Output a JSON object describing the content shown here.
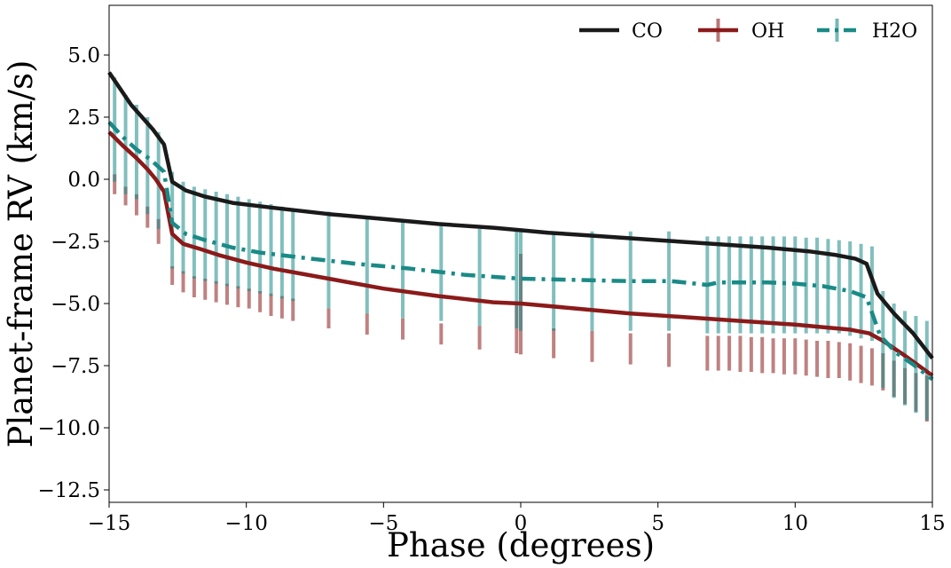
{
  "chart_data": {
    "type": "line",
    "title": "",
    "xlabel": "Phase (degrees)",
    "ylabel": "Planet-frame RV (km/s)",
    "xlim": [
      -15,
      15
    ],
    "ylim": [
      -13,
      7
    ],
    "xticks": [
      -15,
      -10,
      -5,
      0,
      5,
      10,
      15
    ],
    "xtick_labels": [
      "−15",
      "−10",
      "−5",
      "0",
      "5",
      "10",
      "15"
    ],
    "yticks": [
      5.0,
      2.5,
      0.0,
      -2.5,
      -5.0,
      -7.5,
      -10.0,
      -12.5
    ],
    "ytick_labels": [
      "5.0",
      "2.5",
      "0.0",
      "−2.5",
      "−5.0",
      "−7.5",
      "−10.0",
      "−12.5"
    ],
    "grid": false,
    "legend_position": "top-right",
    "series": [
      {
        "name": "CO",
        "color": "#1a1a1a",
        "style": "solid",
        "x": [
          -15.0,
          -14.2,
          -13.4,
          -13.0,
          -12.7,
          -12.2,
          -11.5,
          -10.5,
          -9.0,
          -7.0,
          -5.0,
          -3.0,
          -1.0,
          0.0,
          1.0,
          3.0,
          5.0,
          7.0,
          9.0,
          10.5,
          11.5,
          12.2,
          12.6,
          13.0,
          13.6,
          14.3,
          15.0
        ],
        "y": [
          4.3,
          3.0,
          2.0,
          1.4,
          -0.1,
          -0.45,
          -0.7,
          -0.95,
          -1.15,
          -1.4,
          -1.6,
          -1.8,
          -1.95,
          -2.05,
          -2.15,
          -2.3,
          -2.45,
          -2.6,
          -2.75,
          -2.9,
          -3.05,
          -3.2,
          -3.4,
          -4.6,
          -5.4,
          -6.2,
          -7.2
        ]
      },
      {
        "name": "OH",
        "color": "#8b1a1a",
        "style": "solid",
        "x": [
          -15.0,
          -14.5,
          -14.0,
          -13.6,
          -13.3,
          -13.0,
          -12.7,
          -12.3,
          -11.7,
          -11.0,
          -10.0,
          -9.0,
          -8.0,
          -7.0,
          -5.0,
          -3.0,
          -1.0,
          0.0,
          2.0,
          4.0,
          6.0,
          8.0,
          10.0,
          11.0,
          12.0,
          12.7,
          13.2,
          14.0,
          15.0
        ],
        "y": [
          1.9,
          1.35,
          0.85,
          0.4,
          0.0,
          -0.5,
          -2.2,
          -2.6,
          -2.8,
          -3.05,
          -3.35,
          -3.6,
          -3.8,
          -4.0,
          -4.4,
          -4.7,
          -4.95,
          -5.0,
          -5.2,
          -5.4,
          -5.55,
          -5.7,
          -5.85,
          -5.95,
          -6.05,
          -6.2,
          -6.5,
          -7.1,
          -7.9
        ]
      },
      {
        "name": "H2O",
        "color": "#1a8a86",
        "style": "dashdot",
        "x": [
          -15.0,
          -14.5,
          -14.0,
          -13.5,
          -13.0,
          -12.7,
          -12.2,
          -11.5,
          -10.5,
          -9.5,
          -8.0,
          -6.0,
          -4.0,
          -2.0,
          0.0,
          2.0,
          4.0,
          5.5,
          6.8,
          7.2,
          8.0,
          9.0,
          10.0,
          11.0,
          12.0,
          12.6,
          13.1,
          13.7,
          14.3,
          15.0
        ],
        "y": [
          2.3,
          1.7,
          1.2,
          0.8,
          0.3,
          -1.75,
          -2.2,
          -2.45,
          -2.75,
          -2.95,
          -3.15,
          -3.4,
          -3.6,
          -3.85,
          -4.0,
          -4.05,
          -4.1,
          -4.1,
          -4.25,
          -4.15,
          -4.15,
          -4.15,
          -4.2,
          -4.3,
          -4.5,
          -4.75,
          -6.3,
          -7.0,
          -7.45,
          -8.05
        ]
      }
    ],
    "error_bars": {
      "description": "vertical error bars drawn at each sampled phase",
      "x": [
        -14.8,
        -14.4,
        -14.0,
        -13.6,
        -13.2,
        -12.7,
        -12.3,
        -11.9,
        -11.5,
        -11.1,
        -10.7,
        -10.3,
        -9.9,
        -9.5,
        -9.1,
        -8.7,
        -8.3,
        -7.0,
        -5.6,
        -4.3,
        -2.9,
        -1.5,
        -0.15,
        0.0,
        1.2,
        2.6,
        4.0,
        5.4,
        6.8,
        7.2,
        7.6,
        8.0,
        8.4,
        8.8,
        9.2,
        9.6,
        10.0,
        10.4,
        10.8,
        11.2,
        11.6,
        12.0,
        12.4,
        12.8,
        13.2,
        13.6,
        14.0,
        14.4,
        14.8
      ],
      "oh_low": [
        -0.6,
        -1.05,
        -1.45,
        -1.95,
        -2.6,
        -4.25,
        -4.55,
        -4.75,
        -4.85,
        -4.95,
        -5.05,
        -5.15,
        -5.2,
        -5.35,
        -5.5,
        -5.6,
        -5.7,
        -6.0,
        -6.25,
        -6.45,
        -6.65,
        -6.85,
        -7.0,
        -7.05,
        -7.2,
        -7.35,
        -7.45,
        -7.55,
        -7.7,
        -7.7,
        -7.7,
        -7.75,
        -7.75,
        -7.8,
        -7.8,
        -7.85,
        -7.85,
        -7.9,
        -7.95,
        -8.0,
        -8.0,
        -8.1,
        -8.2,
        -8.3,
        -8.5,
        -8.75,
        -9.05,
        -9.35,
        -9.75
      ],
      "oh_high": [
        0.2,
        -0.3,
        -0.6,
        -1.1,
        -1.6,
        -3.5,
        -3.7,
        -3.9,
        -4.0,
        -4.1,
        -4.2,
        -4.3,
        -4.4,
        -4.5,
        -4.6,
        -4.7,
        -4.8,
        -5.2,
        -5.4,
        -5.6,
        -5.8,
        -5.9,
        -5.0,
        -3.0,
        -6.0,
        -6.1,
        -6.2,
        -6.2,
        -6.3,
        -6.3,
        -6.3,
        -6.3,
        -6.35,
        -6.35,
        -6.4,
        -6.4,
        -6.4,
        -6.45,
        -6.5,
        -6.5,
        -6.55,
        -6.6,
        -6.7,
        -6.8,
        -7.0,
        -7.3,
        -7.6,
        -7.8,
        -7.9
      ],
      "h2o_low": [
        -0.1,
        -0.6,
        -0.8,
        -1.4,
        -2.0,
        -3.6,
        -3.8,
        -4.0,
        -4.1,
        -4.2,
        -4.3,
        -4.4,
        -4.5,
        -4.6,
        -4.7,
        -4.8,
        -4.9,
        -5.2,
        -5.4,
        -5.6,
        -5.7,
        -5.9,
        -6.0,
        -6.1,
        -6.1,
        -6.1,
        -6.1,
        -6.1,
        -6.2,
        -6.2,
        -6.2,
        -6.2,
        -6.2,
        -6.2,
        -6.2,
        -6.2,
        -6.2,
        -6.2,
        -6.2,
        -6.2,
        -6.2,
        -6.3,
        -6.4,
        -6.5,
        -8.4,
        -8.8,
        -9.1,
        -9.4,
        -9.7
      ],
      "h2o_high": [
        4.1,
        3.4,
        3.0,
        2.5,
        1.9,
        0.3,
        -0.1,
        -0.3,
        -0.4,
        -0.5,
        -0.6,
        -0.7,
        -0.8,
        -0.9,
        -1.0,
        -1.1,
        -1.2,
        -1.3,
        -1.5,
        -1.7,
        -1.8,
        -2.0,
        -2.1,
        -2.1,
        -2.1,
        -2.1,
        -2.1,
        -2.1,
        -2.3,
        -2.3,
        -2.3,
        -2.3,
        -2.3,
        -2.3,
        -2.3,
        -2.3,
        -2.3,
        -2.35,
        -2.35,
        -2.4,
        -2.45,
        -2.5,
        -2.6,
        -2.7,
        -4.5,
        -5.0,
        -5.3,
        -5.5,
        -5.7
      ]
    }
  }
}
